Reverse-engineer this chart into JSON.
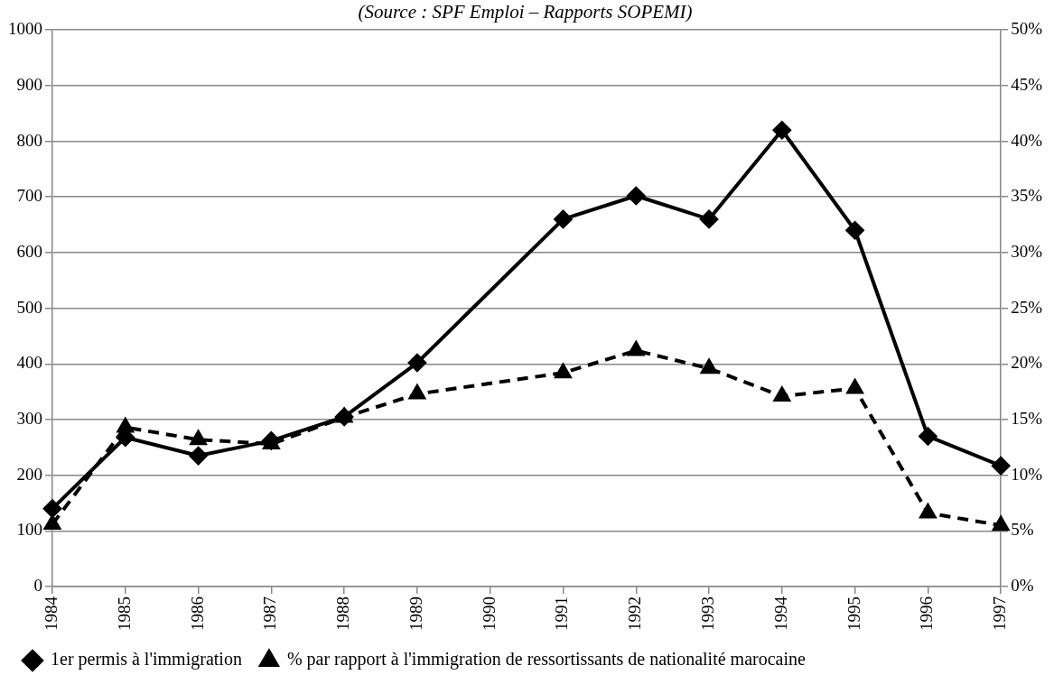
{
  "chart_data": {
    "type": "line",
    "annotations": [
      "(Source : SPF Emploi – Rapports SOPEMI)"
    ],
    "categories": [
      "1984",
      "1985",
      "1986",
      "1987",
      "1988",
      "1989",
      "1990",
      "1991",
      "1992",
      "1993",
      "1994",
      "1995",
      "1996",
      "1997"
    ],
    "series": [
      {
        "name": "1er permis à l'immigration",
        "color": "#000000",
        "marker": "diamond",
        "line_style": "solid",
        "values": [
          140,
          268,
          235,
          262,
          305,
          402,
          null,
          660,
          702,
          660,
          820,
          640,
          270,
          217
        ]
      },
      {
        "name": "% par rapport à l'immigration de ressortissants de nationalité marocaine",
        "color": "#000000",
        "marker": "triangle",
        "line_style": "dashed",
        "axis": "y2",
        "values": [
          5.6,
          14.3,
          13.2,
          12.8,
          15.2,
          17.3,
          null,
          19.2,
          21.2,
          19.6,
          17.1,
          17.8,
          6.6,
          5.5
        ]
      }
    ],
    "ylim": [
      0,
      1000
    ],
    "yticks": [
      0,
      100,
      200,
      300,
      400,
      500,
      600,
      700,
      800,
      900,
      1000
    ],
    "y2lim": [
      0,
      50
    ],
    "y2ticks": [
      {
        "value": 0,
        "label": "0%"
      },
      {
        "value": 5,
        "label": "5%"
      },
      {
        "value": 10,
        "label": "10%"
      },
      {
        "value": 15,
        "label": "15%"
      },
      {
        "value": 20,
        "label": "20%"
      },
      {
        "value": 25,
        "label": "25%"
      },
      {
        "value": 30,
        "label": "30%"
      },
      {
        "value": 35,
        "label": "35%"
      },
      {
        "value": 40,
        "label": "40%"
      },
      {
        "value": 45,
        "label": "45%"
      },
      {
        "value": 50,
        "label": "50%"
      }
    ],
    "grid": "y",
    "legend": "bottom"
  }
}
